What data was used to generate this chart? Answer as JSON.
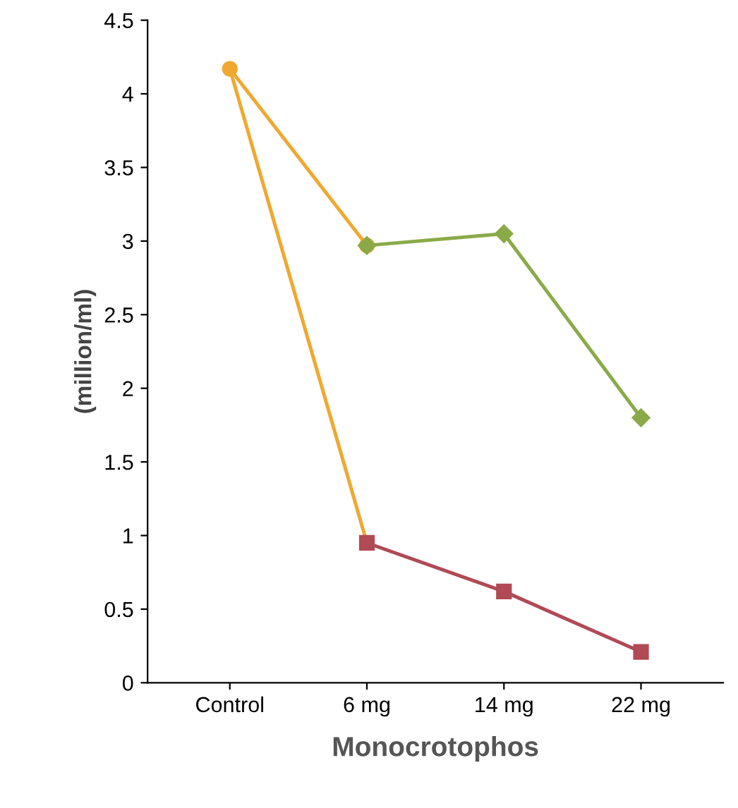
{
  "chart_data": {
    "type": "line",
    "xlabel": "Monocrotophos",
    "ylabel": "(million/ml)",
    "categories": [
      "Control",
      "6 mg",
      "14 mg",
      "22 mg"
    ],
    "series": [
      {
        "color": "#f0a830",
        "values": [
          4.17,
          2.97,
          null,
          null
        ],
        "marker": "circle"
      },
      {
        "color": "#f0a830",
        "values": [
          4.17,
          0.95,
          null,
          null
        ],
        "marker": "none"
      },
      {
        "color": "#8aaa48",
        "values": [
          null,
          2.97,
          3.05,
          1.8
        ],
        "marker": "diamond"
      },
      {
        "color": "#b04a55",
        "values": [
          null,
          0.95,
          0.62,
          0.21
        ],
        "marker": "square"
      }
    ],
    "ylim": [
      0,
      4.5
    ],
    "yticks": [
      0,
      0.5,
      1,
      1.5,
      2,
      2.5,
      3,
      3.5,
      4,
      4.5
    ],
    "grid": false,
    "legend": false,
    "line_style": "solid"
  }
}
